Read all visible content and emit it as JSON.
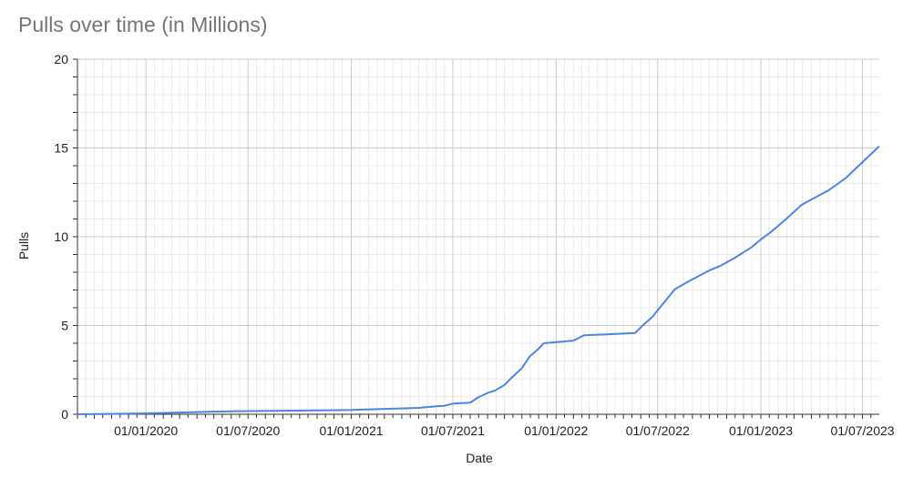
{
  "chart_data": {
    "type": "line",
    "title": "Pulls over time (in Millions)",
    "xlabel": "Date",
    "ylabel": "Pulls",
    "ylim": [
      0,
      20
    ],
    "yticks": [
      0,
      5,
      10,
      15,
      20
    ],
    "xlim": [
      "2019-09-01",
      "2023-07-31"
    ],
    "xticks": [
      {
        "date": "2020-01-01",
        "label": "01/01/2020"
      },
      {
        "date": "2020-07-01",
        "label": "01/07/2020"
      },
      {
        "date": "2021-01-01",
        "label": "01/01/2021"
      },
      {
        "date": "2021-07-01",
        "label": "01/07/2021"
      },
      {
        "date": "2022-01-01",
        "label": "01/01/2022"
      },
      {
        "date": "2022-07-01",
        "label": "01/07/2022"
      },
      {
        "date": "2023-01-01",
        "label": "01/01/2023"
      },
      {
        "date": "2023-07-01",
        "label": "01/07/2023"
      }
    ],
    "grid": true,
    "colors": {
      "line": "#4a86e8",
      "grid_major": "#cccccc",
      "grid_minor": "#ebebeb",
      "axis": "#333333",
      "title": "#757575"
    },
    "series": [
      {
        "points": [
          [
            "2019-09-01",
            0.0
          ],
          [
            "2019-11-01",
            0.02
          ],
          [
            "2020-01-01",
            0.05
          ],
          [
            "2020-03-01",
            0.1
          ],
          [
            "2020-05-01",
            0.15
          ],
          [
            "2020-07-01",
            0.18
          ],
          [
            "2020-09-01",
            0.2
          ],
          [
            "2020-11-01",
            0.22
          ],
          [
            "2021-01-01",
            0.24
          ],
          [
            "2021-03-01",
            0.3
          ],
          [
            "2021-05-01",
            0.36
          ],
          [
            "2021-06-01",
            0.45
          ],
          [
            "2021-06-15",
            0.47
          ],
          [
            "2021-07-01",
            0.6
          ],
          [
            "2021-08-01",
            0.65
          ],
          [
            "2021-08-15",
            0.95
          ],
          [
            "2021-09-01",
            1.2
          ],
          [
            "2021-09-15",
            1.35
          ],
          [
            "2021-10-01",
            1.65
          ],
          [
            "2021-10-15",
            2.1
          ],
          [
            "2021-11-01",
            2.6
          ],
          [
            "2021-11-15",
            3.25
          ],
          [
            "2021-12-01",
            3.7
          ],
          [
            "2021-12-10",
            4.0
          ],
          [
            "2022-02-01",
            4.15
          ],
          [
            "2022-02-20",
            4.45
          ],
          [
            "2022-04-01",
            4.5
          ],
          [
            "2022-05-22",
            4.58
          ],
          [
            "2022-06-01",
            4.9
          ],
          [
            "2022-06-22",
            5.5
          ],
          [
            "2022-07-15",
            6.4
          ],
          [
            "2022-08-01",
            7.05
          ],
          [
            "2022-09-01",
            7.6
          ],
          [
            "2022-10-01",
            8.1
          ],
          [
            "2022-10-20",
            8.35
          ],
          [
            "2022-11-15",
            8.8
          ],
          [
            "2022-12-15",
            9.4
          ],
          [
            "2023-01-01",
            9.85
          ],
          [
            "2023-01-20",
            10.3
          ],
          [
            "2023-02-15",
            11.0
          ],
          [
            "2023-03-15",
            11.8
          ],
          [
            "2023-04-01",
            12.1
          ],
          [
            "2023-05-01",
            12.6
          ],
          [
            "2023-06-01",
            13.3
          ],
          [
            "2023-07-01",
            14.2
          ],
          [
            "2023-07-31",
            15.1
          ]
        ]
      }
    ]
  }
}
